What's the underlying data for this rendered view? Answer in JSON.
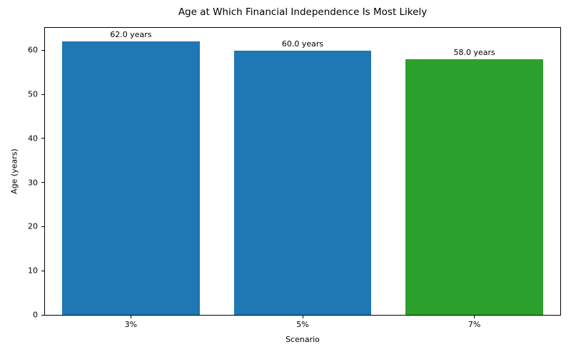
{
  "chart_data": {
    "type": "bar",
    "title": "Age at Which Financial Independence Is Most Likely",
    "xlabel": "Scenario",
    "ylabel": "Age (years)",
    "categories": [
      "3%",
      "5%",
      "7%"
    ],
    "values": [
      62.0,
      60.0,
      58.0
    ],
    "bar_labels": [
      "62.0 years",
      "60.0 years",
      "58.0 years"
    ],
    "bar_colors": [
      "#1f77b4",
      "#1f77b4",
      "#2ca02c"
    ],
    "ylim": [
      0,
      65.1
    ],
    "yticks": [
      0,
      10,
      20,
      30,
      40,
      50,
      60
    ],
    "grid": false,
    "legend_position": "none",
    "bar_width_fraction": 0.8,
    "frame_color": "#000000",
    "text_color": "#000000",
    "background_color": "#ffffff"
  }
}
